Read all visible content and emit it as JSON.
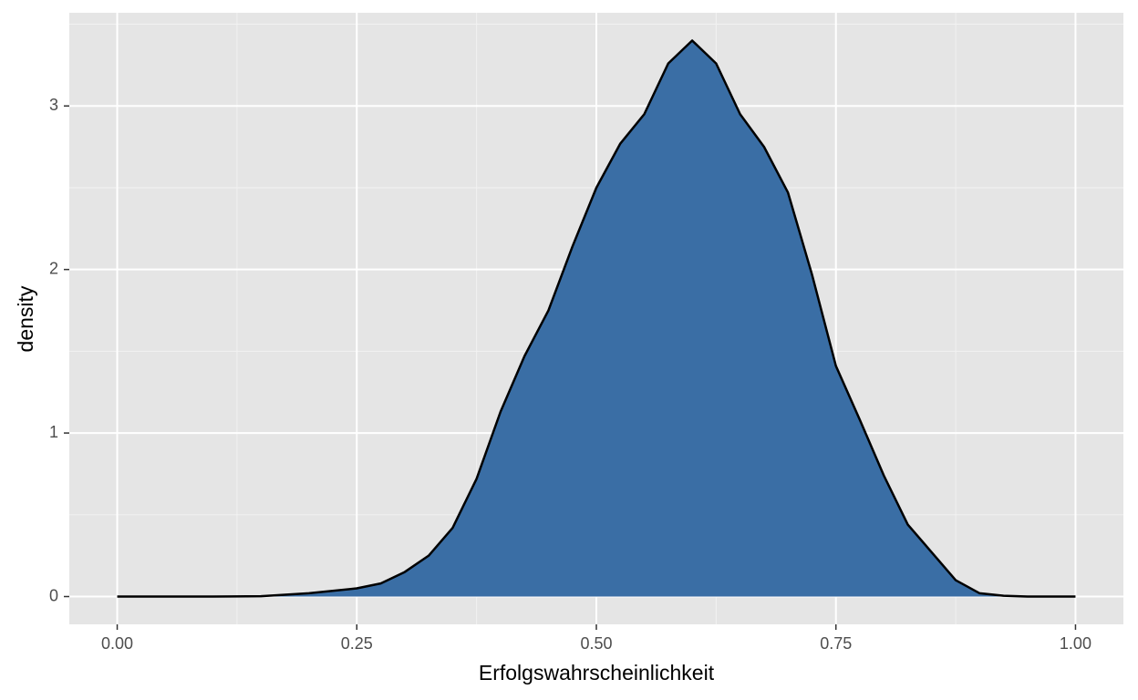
{
  "chart_data": {
    "type": "area",
    "x_label": "Erfolgswahrscheinlichkeit",
    "y_label": "density",
    "x": [
      0,
      0.05,
      0.1,
      0.15,
      0.2,
      0.25,
      0.275,
      0.3,
      0.325,
      0.35,
      0.375,
      0.4,
      0.425,
      0.45,
      0.475,
      0.5,
      0.525,
      0.55,
      0.575,
      0.6,
      0.625,
      0.65,
      0.675,
      0.7,
      0.725,
      0.75,
      0.775,
      0.8,
      0.825,
      0.85,
      0.875,
      0.9,
      0.925,
      0.95,
      1
    ],
    "values": [
      0,
      0,
      0,
      0.002,
      0.02,
      0.05,
      0.08,
      0.15,
      0.25,
      0.42,
      0.72,
      1.13,
      1.47,
      1.75,
      2.14,
      2.5,
      2.77,
      2.95,
      3.26,
      3.4,
      3.26,
      2.95,
      2.75,
      2.47,
      1.97,
      1.41,
      1.08,
      0.74,
      0.44,
      0.27,
      0.1,
      0.02,
      0.005,
      0,
      0
    ],
    "color": "#3a6ea5",
    "line_color": "#000000",
    "xlim": [
      -0.05,
      1.05
    ],
    "ylim": [
      -0.17,
      3.57
    ],
    "xticks": [
      {
        "value": 0,
        "label": "0.00"
      },
      {
        "value": 0.25,
        "label": "0.25"
      },
      {
        "value": 0.5,
        "label": "0.50"
      },
      {
        "value": 0.75,
        "label": "0.75"
      },
      {
        "value": 1,
        "label": "1.00"
      }
    ],
    "yticks": [
      0,
      1,
      2,
      3
    ],
    "x_minor_grid": [
      0.125,
      0.375,
      0.625,
      0.875
    ],
    "y_minor_grid": [
      0.5,
      1.5,
      2.5,
      3.5
    ],
    "grid": true
  }
}
